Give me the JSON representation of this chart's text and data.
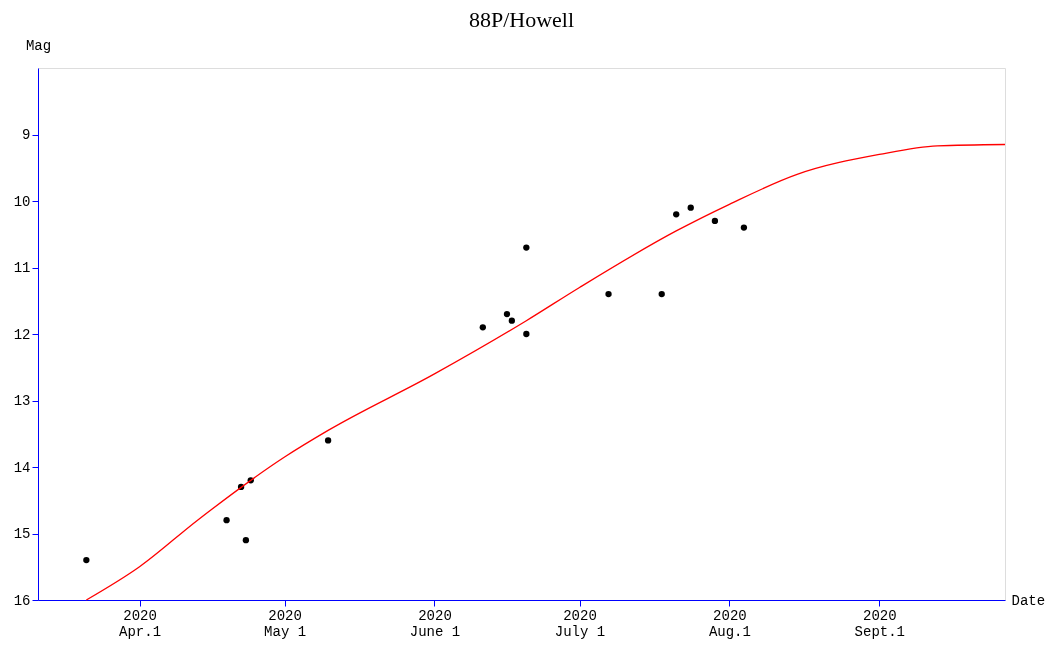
{
  "chart_data": {
    "type": "scatter",
    "title": "88P/Howell",
    "xlabel": "Date",
    "ylabel": "Mag",
    "xlim": [
      "2020-03-11",
      "2020-09-27"
    ],
    "ylim": [
      16,
      8
    ],
    "xticks": [
      {
        "value": "2020-04-01",
        "label": "2020\nApr.1"
      },
      {
        "value": "2020-05-01",
        "label": "2020\nMay 1"
      },
      {
        "value": "2020-06-01",
        "label": "2020\nJune 1"
      },
      {
        "value": "2020-07-01",
        "label": "2020\nJuly 1"
      },
      {
        "value": "2020-08-01",
        "label": "2020\nAug.1"
      },
      {
        "value": "2020-09-01",
        "label": "2020\nSept.1"
      }
    ],
    "yticks": [
      9,
      10,
      11,
      12,
      13,
      14,
      15,
      16
    ],
    "grid": false,
    "series": [
      {
        "type": "scatter",
        "marker": "circle",
        "color": "#000000",
        "x": [
          "2020-03-21",
          "2020-04-19",
          "2020-04-22",
          "2020-04-23",
          "2020-04-24",
          "2020-05-10",
          "2020-06-11",
          "2020-06-16",
          "2020-06-17",
          "2020-06-20",
          "2020-06-20",
          "2020-07-07",
          "2020-07-18",
          "2020-07-21",
          "2020-07-24",
          "2020-07-29",
          "2020-08-04"
        ],
        "values": [
          15.4,
          14.8,
          14.3,
          15.1,
          14.2,
          13.6,
          11.9,
          11.7,
          11.8,
          10.7,
          12.0,
          11.4,
          11.4,
          10.2,
          10.1,
          10.3,
          10.4
        ]
      },
      {
        "type": "line",
        "marker": "none",
        "line_style": "solid",
        "color": "#ff0000",
        "x": [
          "2020-03-21",
          "2020-04-01",
          "2020-04-13",
          "2020-05-01",
          "2020-05-10",
          "2020-06-01",
          "2020-06-20",
          "2020-07-01",
          "2020-07-21",
          "2020-08-01",
          "2020-08-15",
          "2020-09-01",
          "2020-09-13",
          "2020-09-27"
        ],
        "values": [
          16.0,
          15.5,
          14.8,
          13.85,
          13.45,
          12.6,
          11.8,
          11.3,
          10.45,
          10.05,
          9.6,
          9.3,
          9.17,
          9.15
        ]
      }
    ]
  }
}
